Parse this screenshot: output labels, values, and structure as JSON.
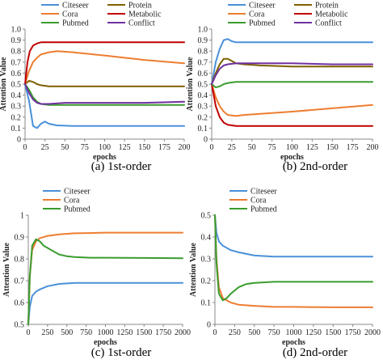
{
  "colors": {
    "citeseer": "#4a90d9",
    "cora": "#ed7d31",
    "pubmed": "#3a9c2e",
    "protein": "#7f6000",
    "metabolic": "#c00000",
    "conflict": "#7030a0"
  },
  "chart_data": [
    {
      "type": "line",
      "caption": "(a) 1st-order",
      "xlabel": "epochs",
      "ylabel": "Attention Value",
      "xlim": [
        0,
        200
      ],
      "ylim": [
        0,
        1
      ],
      "xticks": [
        "0",
        "25",
        "50",
        "75",
        "100",
        "125",
        "150",
        "175",
        "200"
      ],
      "yticks": [
        "0",
        "0.1",
        "0.2",
        "0.3",
        "0.4",
        "0.5",
        "0.6",
        "0.7",
        "0.8",
        "0.9",
        "1.0"
      ],
      "grid": false,
      "legend_position": "top",
      "legend_columns": 2,
      "series": [
        {
          "name": "Citeseer",
          "color_key": "citeseer",
          "x": [
            0,
            5,
            10,
            15,
            20,
            25,
            30,
            40,
            60,
            100,
            150,
            200
          ],
          "values": [
            0.5,
            0.35,
            0.12,
            0.1,
            0.14,
            0.16,
            0.14,
            0.125,
            0.12,
            0.12,
            0.12,
            0.12
          ]
        },
        {
          "name": "Protein",
          "color_key": "protein",
          "x": [
            0,
            5,
            10,
            15,
            20,
            30,
            50,
            100,
            150,
            200
          ],
          "values": [
            0.5,
            0.53,
            0.52,
            0.5,
            0.49,
            0.48,
            0.48,
            0.48,
            0.48,
            0.48
          ]
        },
        {
          "name": "Cora",
          "color_key": "cora",
          "x": [
            0,
            5,
            10,
            15,
            20,
            30,
            40,
            60,
            100,
            150,
            200
          ],
          "values": [
            0.5,
            0.62,
            0.7,
            0.74,
            0.77,
            0.79,
            0.8,
            0.79,
            0.76,
            0.72,
            0.69
          ]
        },
        {
          "name": "Metabolic",
          "color_key": "metabolic",
          "x": [
            0,
            3,
            6,
            10,
            15,
            20,
            30,
            50,
            100,
            150,
            200
          ],
          "values": [
            0.5,
            0.7,
            0.8,
            0.85,
            0.87,
            0.88,
            0.88,
            0.88,
            0.88,
            0.88,
            0.88
          ]
        },
        {
          "name": "Pubmed",
          "color_key": "pubmed",
          "x": [
            0,
            5,
            10,
            15,
            20,
            30,
            50,
            100,
            150,
            200
          ],
          "values": [
            0.5,
            0.45,
            0.38,
            0.34,
            0.32,
            0.31,
            0.31,
            0.31,
            0.31,
            0.31
          ]
        },
        {
          "name": "Conflict",
          "color_key": "conflict",
          "x": [
            0,
            5,
            10,
            15,
            20,
            30,
            50,
            100,
            150,
            200
          ],
          "values": [
            0.5,
            0.42,
            0.36,
            0.33,
            0.32,
            0.32,
            0.33,
            0.33,
            0.33,
            0.34
          ]
        }
      ]
    },
    {
      "type": "line",
      "caption": "(b) 2nd-order",
      "xlabel": "epochs",
      "ylabel": "Attention Value",
      "xlim": [
        0,
        200
      ],
      "ylim": [
        0,
        1
      ],
      "xticks": [
        "0",
        "25",
        "50",
        "75",
        "100",
        "125",
        "150",
        "175",
        "200"
      ],
      "yticks": [
        "0",
        "0.1",
        "0.2",
        "0.3",
        "0.4",
        "0.5",
        "0.6",
        "0.7",
        "0.8",
        "0.9",
        "1.0"
      ],
      "grid": false,
      "legend_position": "top",
      "legend_columns": 2,
      "series": [
        {
          "name": "Citeseer",
          "color_key": "citeseer",
          "x": [
            0,
            5,
            10,
            15,
            20,
            25,
            30,
            40,
            60,
            100,
            150,
            200
          ],
          "values": [
            0.5,
            0.7,
            0.82,
            0.9,
            0.91,
            0.89,
            0.88,
            0.88,
            0.88,
            0.88,
            0.88,
            0.88
          ]
        },
        {
          "name": "Protein",
          "color_key": "protein",
          "x": [
            0,
            5,
            10,
            15,
            20,
            25,
            30,
            40,
            60,
            100,
            150,
            200
          ],
          "values": [
            0.5,
            0.6,
            0.68,
            0.73,
            0.73,
            0.71,
            0.69,
            0.68,
            0.67,
            0.66,
            0.66,
            0.66
          ]
        },
        {
          "name": "Cora",
          "color_key": "cora",
          "x": [
            0,
            5,
            10,
            15,
            20,
            30,
            40,
            60,
            100,
            150,
            200
          ],
          "values": [
            0.5,
            0.38,
            0.3,
            0.25,
            0.22,
            0.21,
            0.22,
            0.23,
            0.25,
            0.28,
            0.31
          ]
        },
        {
          "name": "Metabolic",
          "color_key": "metabolic",
          "x": [
            0,
            5,
            10,
            15,
            20,
            30,
            50,
            100,
            150,
            200
          ],
          "values": [
            0.5,
            0.3,
            0.2,
            0.15,
            0.13,
            0.12,
            0.12,
            0.12,
            0.12,
            0.12
          ]
        },
        {
          "name": "Pubmed",
          "color_key": "pubmed",
          "x": [
            0,
            5,
            10,
            15,
            20,
            30,
            50,
            100,
            150,
            200
          ],
          "values": [
            0.5,
            0.47,
            0.48,
            0.5,
            0.51,
            0.52,
            0.52,
            0.52,
            0.52,
            0.52
          ]
        },
        {
          "name": "Conflict",
          "color_key": "conflict",
          "x": [
            0,
            5,
            10,
            15,
            20,
            30,
            40,
            60,
            100,
            150,
            200
          ],
          "values": [
            0.5,
            0.58,
            0.64,
            0.67,
            0.68,
            0.69,
            0.69,
            0.69,
            0.69,
            0.68,
            0.68
          ]
        }
      ]
    },
    {
      "type": "line",
      "caption": "(c) 1st-order",
      "xlabel": "epochs",
      "ylabel": "Attention Value",
      "xlim": [
        0,
        2000
      ],
      "ylim": [
        0.5,
        1
      ],
      "xticks": [
        "0",
        "250",
        "500",
        "750",
        "1000",
        "1250",
        "1500",
        "1750",
        "2000"
      ],
      "yticks": [
        "0.5",
        "0.6",
        "0.7",
        "0.8",
        "0.9",
        "1"
      ],
      "grid": false,
      "legend_position": "top",
      "legend_columns": 1,
      "series": [
        {
          "name": "Citeseer",
          "color_key": "citeseer",
          "x": [
            0,
            20,
            50,
            100,
            150,
            250,
            400,
            600,
            800,
            1000,
            1500,
            2000
          ],
          "values": [
            0.5,
            0.58,
            0.63,
            0.65,
            0.66,
            0.675,
            0.685,
            0.69,
            0.69,
            0.69,
            0.69,
            0.69
          ]
        },
        {
          "name": "Cora",
          "color_key": "cora",
          "x": [
            0,
            20,
            50,
            100,
            150,
            250,
            400,
            600,
            800,
            1000,
            1500,
            2000
          ],
          "values": [
            0.5,
            0.72,
            0.84,
            0.88,
            0.895,
            0.905,
            0.912,
            0.917,
            0.918,
            0.92,
            0.92,
            0.92
          ]
        },
        {
          "name": "Pubmed",
          "color_key": "pubmed",
          "x": [
            0,
            20,
            50,
            100,
            150,
            200,
            300,
            400,
            500,
            600,
            800,
            1000,
            1500,
            2000
          ],
          "values": [
            0.5,
            0.72,
            0.86,
            0.89,
            0.88,
            0.86,
            0.84,
            0.82,
            0.812,
            0.808,
            0.805,
            0.805,
            0.804,
            0.803
          ]
        }
      ]
    },
    {
      "type": "line",
      "caption": "(d) 2nd-order",
      "xlabel": "epochs",
      "ylabel": "Attention Value",
      "xlim": [
        0,
        2000
      ],
      "ylim": [
        0,
        0.5
      ],
      "xticks": [
        "0",
        "250",
        "500",
        "750",
        "1000",
        "1250",
        "1500",
        "1750",
        "2000"
      ],
      "yticks": [
        "0",
        "0.1",
        "0.2",
        "0.3",
        "0.4",
        "0.5"
      ],
      "grid": false,
      "legend_position": "top",
      "legend_columns": 1,
      "series": [
        {
          "name": "Citeseer",
          "color_key": "citeseer",
          "x": [
            0,
            20,
            50,
            100,
            200,
            300,
            500,
            750,
            1000,
            1500,
            2000
          ],
          "values": [
            0.5,
            0.42,
            0.38,
            0.36,
            0.34,
            0.33,
            0.315,
            0.31,
            0.31,
            0.31,
            0.31
          ]
        },
        {
          "name": "Cora",
          "color_key": "cora",
          "x": [
            0,
            20,
            50,
            100,
            200,
            300,
            500,
            750,
            1000,
            1500,
            2000
          ],
          "values": [
            0.5,
            0.3,
            0.17,
            0.12,
            0.1,
            0.09,
            0.085,
            0.08,
            0.08,
            0.078,
            0.078
          ]
        },
        {
          "name": "Pubmed",
          "color_key": "pubmed",
          "x": [
            0,
            20,
            50,
            100,
            150,
            200,
            300,
            400,
            500,
            750,
            1000,
            1500,
            2000
          ],
          "values": [
            0.5,
            0.28,
            0.14,
            0.11,
            0.12,
            0.14,
            0.17,
            0.185,
            0.19,
            0.195,
            0.195,
            0.195,
            0.195
          ]
        }
      ]
    }
  ]
}
